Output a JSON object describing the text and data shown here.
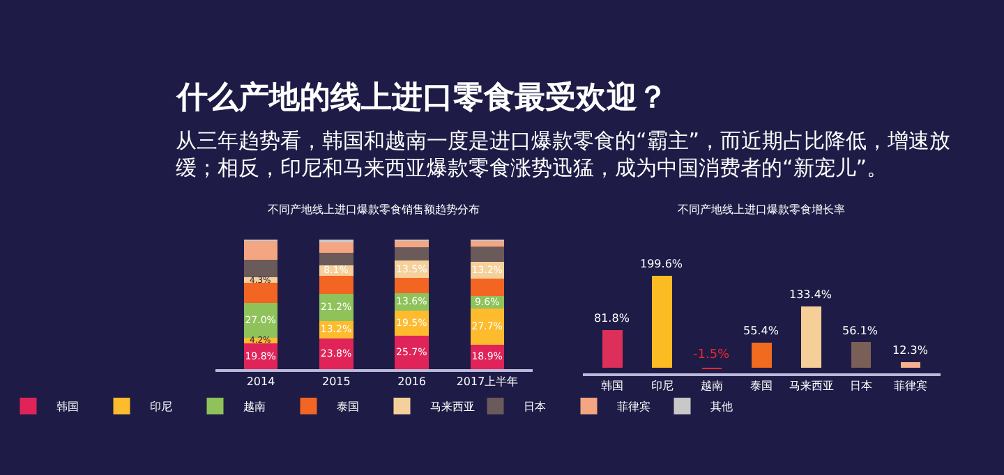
{
  "chart_data": [
    {
      "type": "other",
      "title": "什么产地的线上进口零食最受欢迎？",
      "subtitle": "从三年趋势看，韩国和越南一度是进口爆款零食的“霸主”，而近期占比降低，增速放缓；相反，印尼和马来西亚爆款零食涨势迅猛，成为中国消费者的“新宠儿”。"
    },
    {
      "type": "bar",
      "title": "不同产地线上进口爆款零食销售额趋势分布",
      "stacked": true,
      "legend": "bottom",
      "categories": [
        "2014",
        "2015",
        "2016",
        "2017上半年"
      ],
      "series": [
        {
          "name": "韩国",
          "color": "#e0245a",
          "values": [
            19.8,
            23.8,
            25.7,
            18.9
          ],
          "value_labels": [
            "19.8%",
            "23.8%",
            "25.7%",
            "18.9%"
          ]
        },
        {
          "name": "印尼",
          "color": "#fdbb2d",
          "values": [
            4.2,
            13.2,
            19.5,
            27.7
          ],
          "value_labels": [
            "4.2%",
            "13.2%",
            "19.5%",
            "27.7%"
          ]
        },
        {
          "name": "越南",
          "color": "#8fc25a",
          "values": [
            27.0,
            21.2,
            13.6,
            9.6
          ],
          "value_labels": [
            "27.0%",
            "21.2%",
            "13.6%",
            "9.6%"
          ]
        },
        {
          "name": "泰国",
          "color": "#f26522",
          "values": [
            15.5,
            14.0,
            11.5,
            13.5
          ]
        },
        {
          "name": "马来西亚",
          "color": "#f6d09a",
          "values": [
            4.3,
            8.1,
            13.5,
            13.2
          ],
          "value_labels": [
            "4.3%",
            "8.1%",
            "13.5%",
            "13.2%"
          ]
        },
        {
          "name": "日本",
          "color": "#6b5a5a",
          "values": [
            13.5,
            9.7,
            10.5,
            11.5
          ]
        },
        {
          "name": "菲律宾",
          "color": "#f4a582",
          "values": [
            14.7,
            8.0,
            4.7,
            4.6
          ]
        },
        {
          "name": "其他",
          "color": "#c8c8c8",
          "values": [
            1.0,
            2.0,
            1.0,
            1.0
          ]
        }
      ]
    },
    {
      "type": "bar",
      "title": "不同产地线上进口爆款零食增长率",
      "categories": [
        "韩国",
        "印尼",
        "越南",
        "泰国",
        "马来西亚",
        "日本",
        "菲律宾"
      ],
      "values": [
        81.8,
        199.6,
        -1.5,
        55.4,
        133.4,
        56.1,
        12.3
      ],
      "value_labels": [
        "81.8%",
        "199.6%",
        "-1.5%",
        "55.4%",
        "133.4%",
        "56.1%",
        "12.3%"
      ],
      "colors": [
        "#dc2f5a",
        "#fbbb23",
        "#e8272e",
        "#f06a1f",
        "#f5cf97",
        "#7a5f58",
        "#f6b08b"
      ]
    }
  ]
}
